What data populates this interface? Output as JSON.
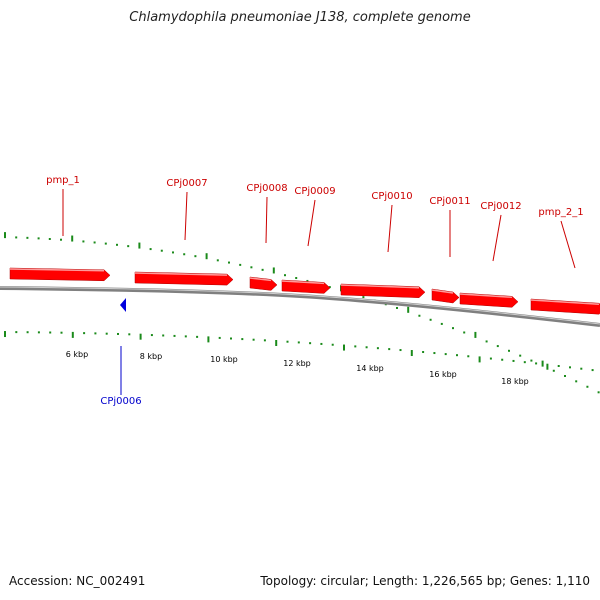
{
  "title": "Chlamydophila pneumoniae J138, complete genome",
  "footer": {
    "accession": "Accession: NC_002491",
    "summary": "Topology: circular; Length: 1,226,565 bp; Genes: 1,110"
  },
  "colors": {
    "gene_forward": "#ff0000",
    "label_forward": "#cc0000",
    "gene_reverse": "#0000dd",
    "label_reverse": "#0000cc",
    "tick": "#1a8a1a",
    "backbone": "#808080",
    "scale_text": "#000000"
  },
  "scale_labels": [
    "6 kbp",
    "8 kbp",
    "10 kbp",
    "12 kbp",
    "14 kbp",
    "16 kbp",
    "18 kbp"
  ],
  "genes": [
    {
      "label": "pmp_1",
      "strand": "+"
    },
    {
      "label": "CPj0006",
      "strand": "-"
    },
    {
      "label": "CPj0007",
      "strand": "+"
    },
    {
      "label": "CPj0008",
      "strand": "+"
    },
    {
      "label": "CPj0009",
      "strand": "+"
    },
    {
      "label": "CPj0010",
      "strand": "+"
    },
    {
      "label": "CPj0011",
      "strand": "+"
    },
    {
      "label": "CPj0012",
      "strand": "+"
    },
    {
      "label": "pmp_2_1",
      "strand": "+"
    }
  ]
}
